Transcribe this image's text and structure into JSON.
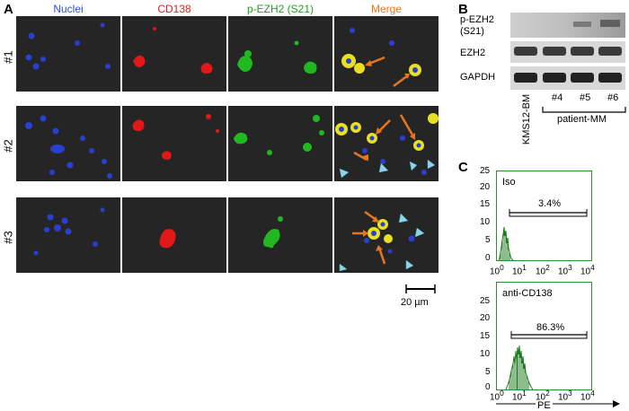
{
  "panelA": {
    "letter": "A",
    "columns": [
      {
        "label": "Nuclei",
        "color": "#2f4fd8"
      },
      {
        "label": "CD138",
        "color": "#e02020"
      },
      {
        "label": "p-EZH2 (S21)",
        "color": "#1fa01f"
      },
      {
        "label": "Merge",
        "color": "#e8761f"
      }
    ],
    "rows": [
      "#1",
      "#2",
      "#3"
    ],
    "scale_bar": "20 µm"
  },
  "panelB": {
    "letter": "B",
    "bands": [
      "p-EZH2\n(S21)",
      "EZH2",
      "GAPDH"
    ],
    "band_labels": [
      "p-EZH2",
      "(S21)",
      "EZH2",
      "GAPDH"
    ],
    "lanes": [
      "KMS12-BM",
      "#4",
      "#5",
      "#6"
    ],
    "group_label": "patient-MM"
  },
  "panelC": {
    "letter": "C",
    "histograms": [
      {
        "label": "Iso",
        "percent": "3.4%"
      },
      {
        "label": "anti-CD138",
        "percent": "86.3%"
      }
    ],
    "yticks": [
      "0",
      "5",
      "10",
      "15",
      "20",
      "25"
    ],
    "xticks_base": "10",
    "xticks_exp": [
      "0",
      "1",
      "2",
      "3",
      "4"
    ],
    "xlabel": "PE",
    "colors": {
      "frame": "#2e8b2e",
      "bars": "#1e7a1e"
    }
  }
}
